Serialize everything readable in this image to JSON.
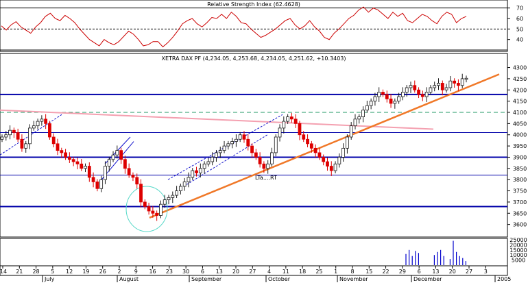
{
  "colors": {
    "rsi_line": "#cc0000",
    "candle_up": "#1a1a1a",
    "candle_down": "#dd0000",
    "support_line": "#f07828",
    "resistance_line": "#f4a0b0",
    "level_line": "#0000aa",
    "channel_line": "#1010cc",
    "dashed_level": "#229966",
    "volume_bar": "#0000cc",
    "circle": "#55d8c8"
  },
  "chart_data": [
    {
      "type": "line",
      "panel": "rsi",
      "title": "Relative Strength Index (62.4628)",
      "ylim": [
        30,
        75
      ],
      "y_ticks": [
        40,
        50,
        60,
        70
      ],
      "reference_levels": [
        70,
        50,
        30
      ],
      "series": [
        {
          "values": [
            53,
            49,
            54,
            57,
            52,
            49,
            46,
            52,
            56,
            62,
            65,
            60,
            58,
            63,
            60,
            56,
            50,
            45,
            40,
            37,
            34,
            40,
            37,
            35,
            38,
            43,
            48,
            45,
            40,
            34,
            35,
            38,
            38,
            33,
            37,
            42,
            48,
            55,
            58,
            60,
            55,
            52,
            56,
            61,
            60,
            64,
            60,
            66,
            62,
            56,
            55,
            50,
            46,
            42,
            44,
            47,
            50,
            54,
            58,
            60,
            54,
            50,
            53,
            58,
            52,
            48,
            42,
            40,
            46,
            50,
            55,
            60,
            63,
            68,
            71,
            66,
            70,
            68,
            64,
            60,
            66,
            62,
            65,
            58,
            56,
            60,
            64,
            62,
            58,
            55,
            62,
            66,
            64,
            56,
            60,
            62
          ]
        }
      ]
    },
    {
      "type": "candlestick",
      "panel": "price",
      "title": "XETRA DAX PF (4,234.05, 4,253.68, 4,234.05, 4,251.62, +10.3403)",
      "ylim": [
        3550,
        4320
      ],
      "y_ticks": [
        3600,
        3650,
        3700,
        3750,
        3800,
        3850,
        3900,
        3950,
        4000,
        4050,
        4100,
        4150,
        4200,
        4250,
        4300
      ],
      "horizontal_levels": [
        4180,
        4100,
        4010,
        3900,
        3820,
        3680
      ],
      "dashed_levels": [
        4100
      ],
      "annotations": [
        "LTa....RT"
      ],
      "closes": [
        3990,
        4000,
        4020,
        4010,
        3980,
        3940,
        3960,
        4030,
        4040,
        4060,
        4070,
        4050,
        3990,
        3960,
        3930,
        3920,
        3900,
        3890,
        3880,
        3870,
        3850,
        3860,
        3810,
        3790,
        3760,
        3800,
        3860,
        3890,
        3910,
        3930,
        3890,
        3850,
        3820,
        3810,
        3780,
        3700,
        3680,
        3660,
        3650,
        3640,
        3690,
        3710,
        3720,
        3730,
        3750,
        3770,
        3790,
        3810,
        3840,
        3830,
        3850,
        3870,
        3880,
        3900,
        3920,
        3930,
        3950,
        3960,
        3970,
        3980,
        4000,
        3980,
        3950,
        3920,
        3900,
        3870,
        3850,
        3870,
        3920,
        3990,
        4030,
        4060,
        4080,
        4070,
        4050,
        4000,
        3980,
        3960,
        3940,
        3920,
        3900,
        3880,
        3860,
        3840,
        3870,
        3900,
        3940,
        3990,
        4040,
        4070,
        4080,
        4110,
        4130,
        4150,
        4170,
        4190,
        4180,
        4160,
        4140,
        4150,
        4170,
        4190,
        4210,
        4220,
        4200,
        4180,
        4170,
        4190,
        4210,
        4220,
        4230,
        4200,
        4210,
        4240,
        4230,
        4220,
        4250,
        4252
      ]
    },
    {
      "type": "bar",
      "panel": "volume",
      "y_ticks_labels": [
        "25000",
        "20000",
        "15000",
        "10000",
        "5000"
      ],
      "ylim": [
        0,
        25000
      ],
      "values": [
        11000,
        15000,
        9000,
        14000,
        12000,
        0,
        0,
        0,
        0,
        10000,
        13000,
        15000,
        9000,
        0,
        6000,
        24000,
        13000,
        9000,
        7000,
        4000
      ]
    },
    {
      "type": "axis",
      "panel": "x-axis",
      "tick_labels": [
        "14",
        "21",
        "28",
        "5",
        "12",
        "19",
        "26",
        "2",
        "9",
        "16",
        "23",
        "30",
        "6",
        "13",
        "20",
        "27",
        "4",
        "11",
        "18",
        "25",
        "1",
        "8",
        "15",
        "22",
        "29",
        "6",
        "13",
        "20",
        "27",
        "3"
      ],
      "month_labels": [
        "July",
        "August",
        "September",
        "October",
        "November",
        "December",
        "2005"
      ]
    }
  ]
}
